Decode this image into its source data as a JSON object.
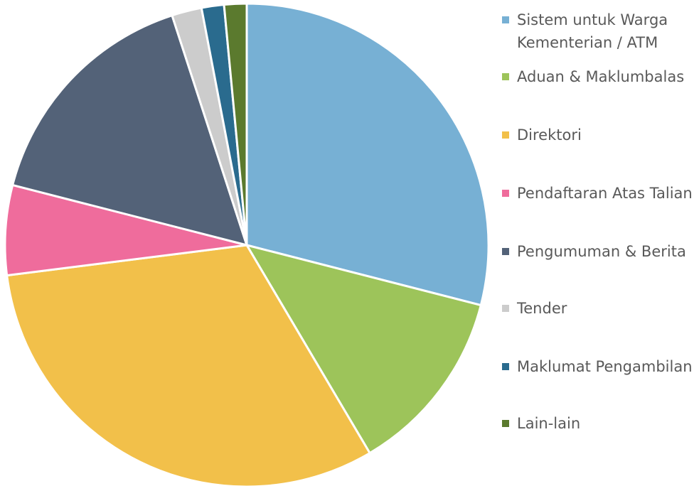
{
  "chart_data": {
    "type": "pie",
    "categories": [
      "Sistem untuk Warga Kementerian / ATM",
      "Aduan & Maklumbalas",
      "Direktori",
      "Pendaftaran Atas Talian",
      "Pengumuman & Berita",
      "Tender",
      "Maklumat Pengambilan",
      "Lain-lain"
    ],
    "values": [
      29,
      12.5,
      31.5,
      6,
      16,
      2,
      1.5,
      1.5
    ],
    "colors": [
      "#77b0d4",
      "#9dc45a",
      "#f2c04a",
      "#ef6c9c",
      "#536278",
      "#cccccc",
      "#2a6b8e",
      "#5b7a2e"
    ],
    "legend": "right"
  }
}
